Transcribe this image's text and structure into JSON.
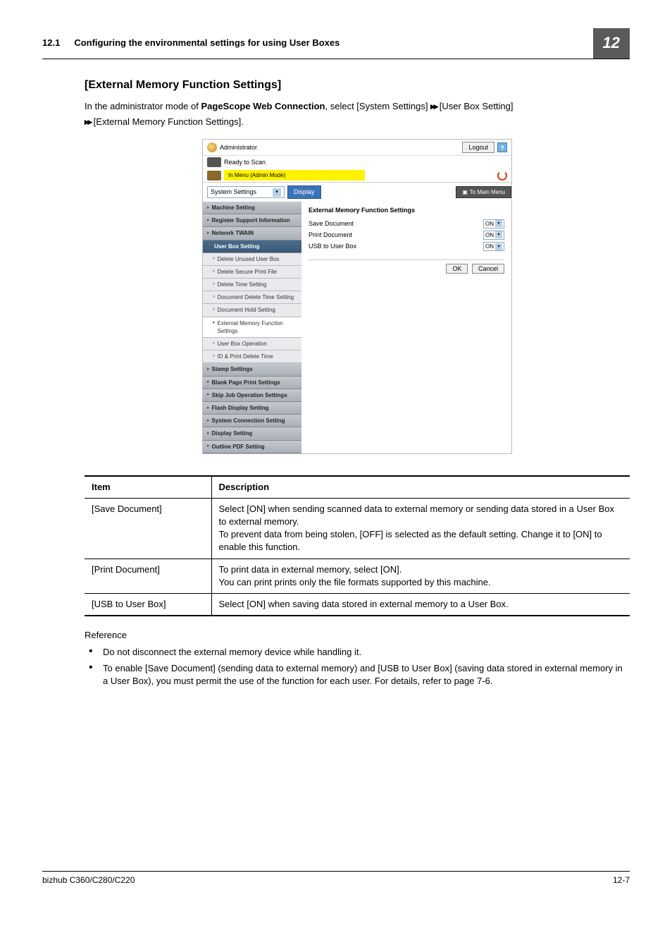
{
  "header": {
    "section_num": "12.1",
    "section_title": "Configuring the environmental settings for using User Boxes",
    "chapter": "12"
  },
  "heading": "[External Memory Function Settings]",
  "intro_parts": {
    "p1": "In the administrator mode of ",
    "bold": "PageScope Web Connection",
    "p2": ", select [System Settings] ",
    "p3": " [User Box Setting] ",
    "p4": " [External Memory Function Settings]."
  },
  "screenshot": {
    "admin_label": "Administrator",
    "logout": "Logout",
    "help": "?",
    "ready": "Ready to Scan",
    "yellow_status": "In Menu (Admin Mode)",
    "dropdown": "System Settings",
    "display_btn": "Display",
    "to_main": "To Main Menu",
    "sidebar": [
      "Machine Setting",
      "Register Support Information",
      "Network TWAIN",
      "User Box Setting"
    ],
    "sidebar_sub": [
      "Delete Unused User Box",
      "Delete Secure Print File",
      "Delete Time Setting",
      "Document Delete Time Setting",
      "Document Hold Setting",
      "External Memory Function Settings",
      "User Box Operation",
      "ID & Print Delete Time"
    ],
    "sidebar_after": [
      "Stamp Settings",
      "Blank Page Print Settings",
      "Skip Job Operation Settings",
      "Flash Display Setting",
      "System Connection Setting",
      "Display Setting",
      "Outline PDF Setting"
    ],
    "main_title": "External Memory Function Settings",
    "rows": [
      {
        "label": "Save Document",
        "value": "ON"
      },
      {
        "label": "Print Document",
        "value": "ON"
      },
      {
        "label": "USB to User Box",
        "value": "ON"
      }
    ],
    "ok": "OK",
    "cancel": "Cancel"
  },
  "table": {
    "headers": [
      "Item",
      "Description"
    ],
    "rows": [
      {
        "item": "[Save Document]",
        "desc": "Select [ON] when sending scanned data to external memory or sending data stored in a User Box to external memory.\nTo prevent data from being stolen, [OFF] is selected as the default setting. Change it to [ON] to enable this function."
      },
      {
        "item": "[Print Document]",
        "desc": "To print data in external memory, select [ON].\nYou can print prints only the file formats supported by this machine."
      },
      {
        "item": "[USB to User Box]",
        "desc": "Select [ON] when saving data stored in external memory to a User Box."
      }
    ]
  },
  "reference": {
    "label": "Reference",
    "bullets": [
      "Do not disconnect the external memory device while handling it.",
      "To enable [Save Document] (sending data to external memory) and [USB to User Box] (saving data stored in external memory in a User Box), you must permit the use of the function for each user. For details, refer to page 7-6."
    ]
  },
  "footer": {
    "left": "bizhub C360/C280/C220",
    "right": "12-7"
  }
}
